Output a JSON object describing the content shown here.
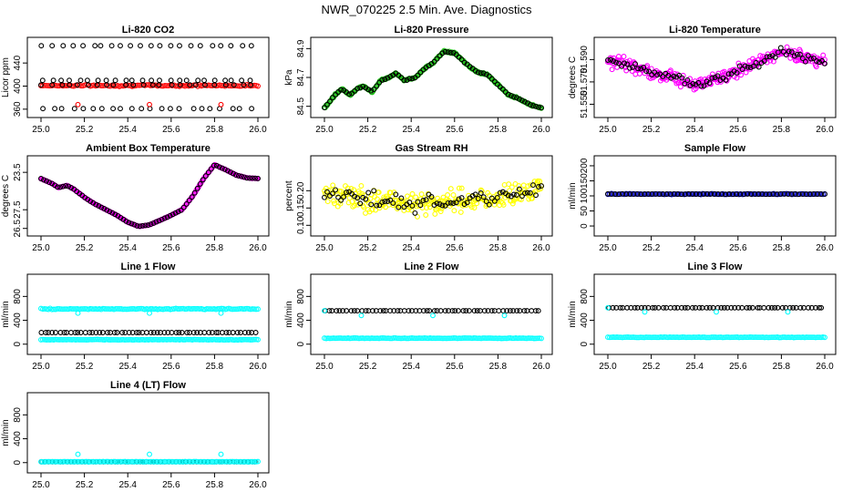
{
  "title": "NWR_070225  2.5 Min. Ave. Diagnostics",
  "colors": {
    "black": "#000000",
    "red": "#ff0000",
    "green": "#22c21a",
    "magenta": "#ff00ff",
    "yellow": "#ffff00",
    "blue": "#0000cc",
    "cyan": "#00ffff"
  },
  "chart_data": [
    {
      "id": "co2",
      "type": "scatter",
      "title": "Li-820 CO2",
      "xlabel": "",
      "ylabel": "Licor ppm",
      "xlim": [
        25.0,
        26.0
      ],
      "ylim": [
        355,
        475
      ],
      "xticks": [
        "25.0",
        "25.2",
        "25.4",
        "25.6",
        "25.8",
        "26.0"
      ],
      "yticks": [
        {
          "v": 360,
          "label": "360"
        },
        {
          "v": 400,
          "label": "400"
        },
        {
          "v": 440,
          "label": "440"
        }
      ],
      "series": [
        {
          "name": "ambient",
          "color": "red",
          "style": "band",
          "y": 401,
          "spread": 2
        },
        {
          "name": "standards",
          "color": "black",
          "style": "rows",
          "rows": [
            {
              "y": 470,
              "n": 22
            },
            {
              "y": 410,
              "n": 24
            },
            {
              "y": 402,
              "n": 24
            },
            {
              "y": 361,
              "n": 22
            }
          ]
        },
        {
          "name": "reference",
          "color": "red",
          "style": "points",
          "x": [
            25.17,
            25.5,
            25.83
          ],
          "yv": [
            368,
            368,
            368
          ]
        }
      ]
    },
    {
      "id": "pressure",
      "type": "scatter",
      "title": "Li-820 Pressure",
      "xlabel": "",
      "ylabel": "kPa",
      "xlim": [
        25.0,
        26.0
      ],
      "ylim": [
        84.46,
        84.94
      ],
      "xticks": [
        "25.0",
        "25.2",
        "25.4",
        "25.6",
        "25.8",
        "26.0"
      ],
      "yticks": [
        {
          "v": 84.5,
          "label": "84.5"
        },
        {
          "v": 84.7,
          "label": "84.7"
        },
        {
          "v": 84.9,
          "label": "84.9"
        }
      ],
      "series": [
        {
          "name": "pressure",
          "color": "green",
          "overlay": "black",
          "style": "curve",
          "noise": 0.008,
          "curve": [
            [
              25.0,
              84.49
            ],
            [
              25.05,
              84.58
            ],
            [
              25.08,
              84.62
            ],
            [
              25.12,
              84.58
            ],
            [
              25.15,
              84.62
            ],
            [
              25.18,
              84.64
            ],
            [
              25.22,
              84.6
            ],
            [
              25.26,
              84.68
            ],
            [
              25.3,
              84.7
            ],
            [
              25.33,
              84.73
            ],
            [
              25.37,
              84.68
            ],
            [
              25.42,
              84.7
            ],
            [
              25.46,
              84.76
            ],
            [
              25.5,
              84.8
            ],
            [
              25.55,
              84.88
            ],
            [
              25.6,
              84.87
            ],
            [
              25.65,
              84.8
            ],
            [
              25.7,
              84.74
            ],
            [
              25.75,
              84.72
            ],
            [
              25.8,
              84.65
            ],
            [
              25.85,
              84.58
            ],
            [
              25.9,
              84.55
            ],
            [
              25.95,
              84.51
            ],
            [
              26.0,
              84.49
            ]
          ]
        }
      ]
    },
    {
      "id": "licortemp",
      "type": "scatter",
      "title": "Li-820 Temperature",
      "xlabel": "",
      "ylabel": "degrees C",
      "xlim": [
        25.0,
        26.0
      ],
      "ylim": [
        51.543,
        51.605
      ],
      "xticks": [
        "25.0",
        "25.2",
        "25.4",
        "25.6",
        "25.8",
        "26.0"
      ],
      "yticks": [
        {
          "v": 51.55,
          "label": "51.550"
        },
        {
          "v": 51.57,
          "label": "51.570"
        },
        {
          "v": 51.59,
          "label": "51.590"
        }
      ],
      "series": [
        {
          "name": "temperature",
          "color": "magenta",
          "overlay": "black",
          "style": "curve",
          "noise": 0.0085,
          "curve": [
            [
              25.0,
              51.589
            ],
            [
              25.1,
              51.585
            ],
            [
              25.2,
              51.578
            ],
            [
              25.3,
              51.575
            ],
            [
              25.4,
              51.568
            ],
            [
              25.5,
              51.572
            ],
            [
              25.6,
              51.58
            ],
            [
              25.7,
              51.588
            ],
            [
              25.8,
              51.597
            ],
            [
              25.9,
              51.592
            ],
            [
              26.0,
              51.588
            ]
          ]
        }
      ]
    },
    {
      "id": "boxtemp",
      "type": "scatter",
      "title": "Ambient Box Temperature",
      "xlabel": "",
      "ylabel": "degrees C",
      "xlim": [
        25.0,
        26.0
      ],
      "ylim": [
        26.4,
        23.25
      ],
      "xticks": [
        "25.0",
        "25.2",
        "25.4",
        "25.6",
        "25.8",
        "26.0"
      ],
      "yticks": [
        {
          "v": 26.5,
          "label": "26.5"
        },
        {
          "v": 27.5,
          "label": "27.5"
        },
        {
          "v": 23.5,
          "label": "23.5"
        }
      ],
      "yticks_pos": [
        0.03,
        0.3,
        0.84
      ],
      "series": [
        {
          "name": "box",
          "color": "magenta",
          "overlay": "black",
          "style": "curve-frac",
          "noise": 0.004,
          "curve": [
            [
              25.0,
              0.75
            ],
            [
              25.05,
              0.68
            ],
            [
              25.08,
              0.62
            ],
            [
              25.12,
              0.65
            ],
            [
              25.15,
              0.6
            ],
            [
              25.2,
              0.48
            ],
            [
              25.25,
              0.38
            ],
            [
              25.3,
              0.3
            ],
            [
              25.35,
              0.22
            ],
            [
              25.4,
              0.12
            ],
            [
              25.45,
              0.06
            ],
            [
              25.5,
              0.08
            ],
            [
              25.55,
              0.15
            ],
            [
              25.6,
              0.22
            ],
            [
              25.65,
              0.3
            ],
            [
              25.7,
              0.5
            ],
            [
              25.75,
              0.75
            ],
            [
              25.8,
              0.95
            ],
            [
              25.85,
              0.88
            ],
            [
              25.9,
              0.8
            ],
            [
              25.95,
              0.76
            ],
            [
              26.0,
              0.75
            ]
          ]
        }
      ]
    },
    {
      "id": "rh",
      "type": "scatter",
      "title": "Gas Stream RH",
      "xlabel": "",
      "ylabel": "percent",
      "xlim": [
        25.0,
        26.0
      ],
      "ylim": [
        0.085,
        0.285
      ],
      "xticks": [
        "25.0",
        "25.2",
        "25.4",
        "25.6",
        "25.8",
        "26.0"
      ],
      "yticks": [
        {
          "v": 0.1,
          "label": "0.10"
        },
        {
          "v": 0.15,
          "label": "0.15"
        },
        {
          "v": 0.2,
          "label": "0.20"
        }
      ],
      "series": [
        {
          "name": "rh",
          "color": "yellow",
          "overlay": "black",
          "style": "curve",
          "noise": 0.05,
          "curve": [
            [
              25.0,
              0.19
            ],
            [
              25.2,
              0.18
            ],
            [
              25.4,
              0.16
            ],
            [
              25.6,
              0.17
            ],
            [
              25.8,
              0.18
            ],
            [
              26.0,
              0.21
            ]
          ]
        }
      ]
    },
    {
      "id": "sampleflow",
      "type": "scatter",
      "title": "Sample Flow",
      "xlabel": "",
      "ylabel": "ml/min",
      "xlim": [
        25.0,
        26.0
      ],
      "ylim": [
        -15,
        215
      ],
      "xticks": [
        "25.0",
        "25.2",
        "25.4",
        "25.6",
        "25.8",
        "26.0"
      ],
      "yticks": [
        {
          "v": 0,
          "label": "0"
        },
        {
          "v": 50,
          "label": "50"
        },
        {
          "v": 100,
          "label": "100"
        },
        {
          "v": 150,
          "label": "150"
        },
        {
          "v": 200,
          "label": "200"
        }
      ],
      "series": [
        {
          "name": "sample",
          "color": "blue",
          "overlay": "black",
          "style": "band",
          "y": 106,
          "spread": 2
        }
      ]
    },
    {
      "id": "line1",
      "type": "scatter",
      "title": "Line 1 Flow",
      "xlabel": "",
      "ylabel": "ml/min",
      "xlim": [
        25.0,
        26.0
      ],
      "ylim": [
        -80,
        1080
      ],
      "xticks": [
        "25.0",
        "25.2",
        "25.4",
        "25.6",
        "25.8",
        "26.0"
      ],
      "yticks": [
        {
          "v": 0,
          "label": "0"
        },
        {
          "v": 400,
          "label": "400"
        },
        {
          "v": 800,
          "label": "800"
        }
      ],
      "series": [
        {
          "name": "cyan-high",
          "color": "cyan",
          "style": "band",
          "y": 590,
          "spread": 12
        },
        {
          "name": "black-mid",
          "color": "black",
          "style": "rows",
          "rows": [
            {
              "y": 195,
              "n": 60
            }
          ]
        },
        {
          "name": "cyan-low",
          "color": "cyan",
          "style": "band",
          "y": 75,
          "spread": 6
        },
        {
          "name": "cyan-dips",
          "color": "cyan",
          "style": "points",
          "x": [
            25.17,
            25.5,
            25.83
          ],
          "yv": [
            520,
            520,
            520
          ]
        }
      ]
    },
    {
      "id": "line2",
      "type": "scatter",
      "title": "Line 2 Flow",
      "xlabel": "",
      "ylabel": "ml/min",
      "xlim": [
        25.0,
        26.0
      ],
      "ylim": [
        -80,
        1080
      ],
      "xticks": [
        "25.0",
        "25.2",
        "25.4",
        "25.6",
        "25.8",
        "26.0"
      ],
      "yticks": [
        {
          "v": 0,
          "label": "0"
        },
        {
          "v": 400,
          "label": "400"
        },
        {
          "v": 800,
          "label": "800"
        }
      ],
      "series": [
        {
          "name": "black-high",
          "color": "black",
          "style": "rows",
          "rows": [
            {
              "y": 560,
              "n": 60
            }
          ]
        },
        {
          "name": "cyan-low",
          "color": "cyan",
          "style": "band",
          "y": 100,
          "spread": 6
        },
        {
          "name": "cyan-dips",
          "color": "cyan",
          "style": "points",
          "x": [
            25.0,
            25.17,
            25.5,
            25.83
          ],
          "yv": [
            560,
            480,
            480,
            480
          ]
        }
      ]
    },
    {
      "id": "line3",
      "type": "scatter",
      "title": "Line 3 Flow",
      "xlabel": "",
      "ylabel": "ml/min",
      "xlim": [
        25.0,
        26.0
      ],
      "ylim": [
        -80,
        1080
      ],
      "xticks": [
        "25.0",
        "25.2",
        "25.4",
        "25.6",
        "25.8",
        "26.0"
      ],
      "yticks": [
        {
          "v": 0,
          "label": "0"
        },
        {
          "v": 400,
          "label": "400"
        },
        {
          "v": 800,
          "label": "800"
        }
      ],
      "series": [
        {
          "name": "black-high",
          "color": "black",
          "style": "rows",
          "rows": [
            {
              "y": 610,
              "n": 60
            }
          ]
        },
        {
          "name": "cyan-low",
          "color": "cyan",
          "style": "band",
          "y": 115,
          "spread": 6
        },
        {
          "name": "cyan-dips",
          "color": "cyan",
          "style": "points",
          "x": [
            25.0,
            25.17,
            25.5,
            25.83
          ],
          "yv": [
            610,
            540,
            540,
            540
          ]
        }
      ]
    },
    {
      "id": "line4",
      "type": "scatter",
      "title": "Line 4 (LT) Flow",
      "xlabel": "",
      "ylabel": "ml/min",
      "xlim": [
        25.0,
        26.0
      ],
      "ylim": [
        -80,
        1080
      ],
      "xticks": [
        "25.0",
        "25.2",
        "25.4",
        "25.6",
        "25.8",
        "26.0"
      ],
      "yticks": [
        {
          "v": 0,
          "label": "0"
        },
        {
          "v": 400,
          "label": "400"
        },
        {
          "v": 800,
          "label": "800"
        }
      ],
      "series": [
        {
          "name": "black-base",
          "color": "black",
          "style": "rows",
          "rows": [
            {
              "y": 15,
              "n": 60
            }
          ]
        },
        {
          "name": "cyan-base",
          "color": "cyan",
          "style": "band",
          "y": 15,
          "spread": 4
        },
        {
          "name": "cyan-spikes",
          "color": "cyan",
          "style": "points",
          "x": [
            25.17,
            25.5,
            25.83
          ],
          "yv": [
            140,
            140,
            140
          ]
        }
      ]
    }
  ]
}
